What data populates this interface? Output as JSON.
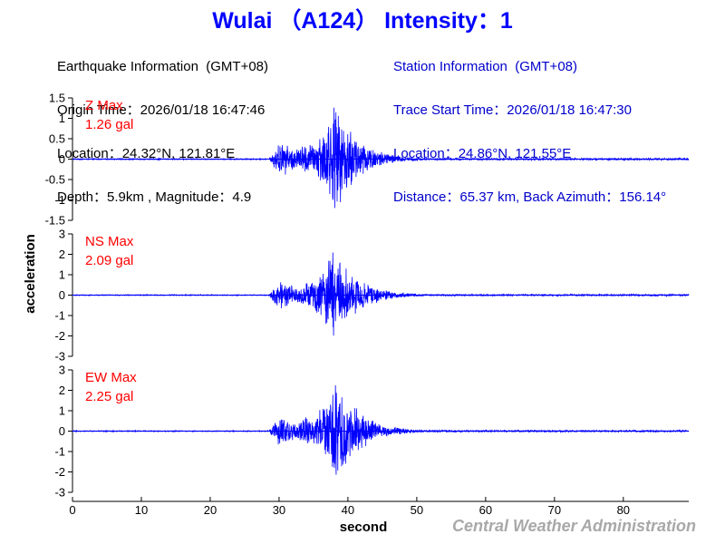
{
  "header": {
    "title": "Wulai （A124） Intensity：1"
  },
  "earthquake_info": {
    "heading": "Earthquake Information  (GMT+08)",
    "origin_time": "Origin Time：2026/01/18 16:47:46",
    "location": "Location：24.32°N, 121.81°E",
    "depth_magnitude": "Depth：5.9km , Magnitude：4.9"
  },
  "station_info": {
    "heading": "Station Information  (GMT+08)",
    "trace_start": "Trace Start Time：2026/01/18 16:47:30",
    "location": "Location：24.86°N, 121.55°E",
    "distance": "Distance：65.37 km, Back Azimuth：156.14°"
  },
  "footer": {
    "credit": "Central Weather Administration"
  },
  "colors": {
    "title": "#0000ff",
    "station_text": "#0000cc",
    "trace": "#0000ff",
    "max_label": "#ff0000",
    "credit": "#a8a8a8"
  },
  "chart_data": {
    "type": "line",
    "xlabel": "second",
    "ylabel": "acceleration",
    "xlim": [
      0,
      89.5
    ],
    "x_ticks": [
      0,
      10,
      20,
      30,
      40,
      50,
      60,
      70,
      80
    ],
    "grid": false,
    "signal_onset_s": 28.5,
    "panels": [
      {
        "name": "Z",
        "max_label": "Z Max",
        "max_value_label": "1.26 gal",
        "max_abs": 1.26,
        "ylim": [
          -1.5,
          1.5
        ],
        "y_ticks": [
          1.5,
          1,
          0.5,
          0,
          -0.5,
          -1,
          -1.5
        ],
        "y_tick_labels": [
          "1.5",
          "1",
          "0.5",
          "0",
          "-0.5",
          "-1",
          "-1.5"
        ],
        "peak_time_s": 38.0
      },
      {
        "name": "NS",
        "max_label": "NS Max",
        "max_value_label": "2.09 gal",
        "max_abs": 2.09,
        "ylim": [
          -3,
          3
        ],
        "y_ticks": [
          3,
          2,
          1,
          0,
          -1,
          -2,
          -3
        ],
        "y_tick_labels": [
          "3",
          "2",
          "1",
          "0",
          "-1",
          "-2",
          "-3"
        ],
        "peak_time_s": 37.8
      },
      {
        "name": "EW",
        "max_label": "EW Max",
        "max_value_label": "2.25 gal",
        "max_abs": 2.25,
        "ylim": [
          -3,
          3
        ],
        "y_ticks": [
          3,
          2,
          1,
          0,
          -1,
          -2,
          -3
        ],
        "y_tick_labels": [
          "3",
          "2",
          "1",
          "0",
          "-1",
          "-2",
          "-3"
        ],
        "peak_time_s": 38.2
      }
    ]
  }
}
